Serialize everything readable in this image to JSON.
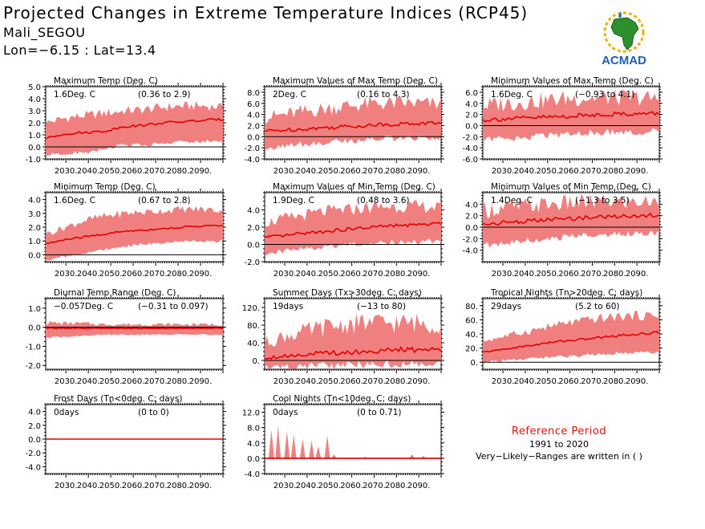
{
  "header": {
    "title": "Projected Changes in Extreme Temperature Indices (RCP45)",
    "location": "Mali_SEGOU",
    "coords": "Lon=−6.15 : Lat=13.4"
  },
  "logo": {
    "text": "ACMAD",
    "icon": "africa-map-logo"
  },
  "reference": {
    "title": "Reference Period",
    "period": "1991 to 2020",
    "note": "Very−Likely−Ranges are written in ( )"
  },
  "colors": {
    "band": "#f08080",
    "line": "#e00000",
    "zero": "#000000"
  },
  "chart_data": [
    {
      "type": "area",
      "title": "Maximum Temp (Deg. C)",
      "summary": "1.6Deg. C",
      "range": "(0.36 to 2.9)",
      "x_start": 2021,
      "x_end": 2100,
      "ylim": [
        -1.0,
        5.0
      ],
      "yticks": [
        "-1.0",
        "0.0",
        "1.0",
        "2.0",
        "3.0",
        "4.0",
        "5.0"
      ],
      "ytick_values": [
        -1,
        0,
        1,
        2,
        3,
        4,
        5
      ],
      "xticks": [
        "2030.",
        "2040.",
        "2050.",
        "2060.",
        "2070.",
        "2080.",
        "2090."
      ],
      "median": [
        0.7,
        1.1,
        1.2,
        1.3,
        1.7,
        1.8,
        2.0,
        2.1,
        2.2,
        2.3
      ],
      "band_low": [
        -0.5,
        -0.4,
        -0.3,
        0.0,
        0.3,
        0.3,
        0.5,
        0.6,
        0.6,
        0.7
      ],
      "band_high": [
        2.0,
        2.4,
        2.6,
        2.8,
        3.0,
        3.1,
        3.3,
        3.4,
        3.4,
        3.3
      ],
      "spikiness": 0.5
    },
    {
      "type": "area",
      "title": "Maximum Values of Max Temp (Deg. C)",
      "summary": "2Deg. C",
      "range": "(0.16 to 4.3)",
      "x_start": 2021,
      "x_end": 2100,
      "ylim": [
        -4.0,
        9.0
      ],
      "yticks": [
        "-4.0",
        "-2.0",
        "0.0",
        "2.0",
        "4.0",
        "6.0",
        "8.0"
      ],
      "ytick_values": [
        -4,
        -2,
        0,
        2,
        4,
        6,
        8
      ],
      "xticks": [
        "2030.",
        "2040.",
        "2050.",
        "2060.",
        "2070.",
        "2080.",
        "2090."
      ],
      "median": [
        1.0,
        1.2,
        1.4,
        1.6,
        1.8,
        2.0,
        2.2,
        2.3,
        2.4,
        2.5
      ],
      "band_low": [
        -1.5,
        -1.2,
        -0.8,
        -0.5,
        -0.2,
        0.0,
        0.2,
        0.3,
        0.3,
        0.4
      ],
      "band_high": [
        3.5,
        4.0,
        4.5,
        5.0,
        5.5,
        5.8,
        6.0,
        6.0,
        6.0,
        5.8
      ],
      "spikiness": 0.9
    },
    {
      "type": "area",
      "title": "Minimum Values of Max Temp (Deg. C)",
      "summary": "1.6Deg. C",
      "range": "(−0.93 to 4.1)",
      "x_start": 2021,
      "x_end": 2100,
      "ylim": [
        -6.0,
        7.0
      ],
      "yticks": [
        "-6.0",
        "-4.0",
        "-2.0",
        "0.0",
        "2.0",
        "4.0",
        "6.0"
      ],
      "ytick_values": [
        -6,
        -4,
        -2,
        0,
        2,
        4,
        6
      ],
      "xticks": [
        "2030.",
        "2040.",
        "2050.",
        "2060.",
        "2070.",
        "2080.",
        "2090."
      ],
      "median": [
        1.0,
        1.2,
        1.3,
        1.5,
        1.6,
        1.8,
        2.0,
        2.1,
        2.1,
        2.2
      ],
      "band_low": [
        -2.0,
        -1.8,
        -1.5,
        -1.2,
        -1.0,
        -0.8,
        -0.6,
        -0.5,
        -0.5,
        -0.4
      ],
      "band_high": [
        3.5,
        4.0,
        4.2,
        4.5,
        4.8,
        5.0,
        5.0,
        5.0,
        5.0,
        4.8
      ],
      "spikiness": 1.0
    },
    {
      "type": "area",
      "title": "Minimum Temp (Deg. C)",
      "summary": "1.6Deg. C",
      "range": "(0.67 to 2.8)",
      "x_start": 2021,
      "x_end": 2100,
      "ylim": [
        -0.5,
        4.5
      ],
      "yticks": [
        "0.0",
        "1.0",
        "2.0",
        "3.0",
        "4.0"
      ],
      "ytick_values": [
        0,
        1,
        2,
        3,
        4
      ],
      "xticks": [
        "2030.",
        "2040.",
        "2050.",
        "2060.",
        "2070.",
        "2080.",
        "2090."
      ],
      "median": [
        0.8,
        1.1,
        1.3,
        1.5,
        1.7,
        1.8,
        1.9,
        2.0,
        2.1,
        2.1
      ],
      "band_low": [
        -0.3,
        0.0,
        0.2,
        0.5,
        0.7,
        0.9,
        1.0,
        1.1,
        1.1,
        1.1
      ],
      "band_high": [
        1.5,
        2.0,
        2.5,
        2.8,
        3.0,
        3.1,
        3.2,
        3.3,
        3.3,
        3.2
      ],
      "spikiness": 0.45
    },
    {
      "type": "area",
      "title": "Maximum Values of Min Temp (Deg. C)",
      "summary": "1.9Deg. C",
      "range": "(0.48 to 3.6)",
      "x_start": 2021,
      "x_end": 2100,
      "ylim": [
        -2.0,
        6.0
      ],
      "yticks": [
        "-2.0",
        "0.0",
        "2.0",
        "4.0"
      ],
      "ytick_values": [
        -2,
        0,
        2,
        4
      ],
      "xticks": [
        "2030.",
        "2040.",
        "2050.",
        "2060.",
        "2070.",
        "2080.",
        "2090."
      ],
      "median": [
        0.8,
        1.0,
        1.3,
        1.5,
        1.7,
        1.9,
        2.1,
        2.2,
        2.3,
        2.4
      ],
      "band_low": [
        -0.8,
        -0.5,
        -0.2,
        0.0,
        0.2,
        0.4,
        0.5,
        0.6,
        0.6,
        0.7
      ],
      "band_high": [
        2.5,
        3.0,
        3.4,
        3.8,
        4.0,
        4.2,
        4.4,
        4.4,
        4.4,
        4.3
      ],
      "spikiness": 0.7
    },
    {
      "type": "area",
      "title": "Minimum Values of Min Temp (Deg. C)",
      "summary": "1.4Deg. C",
      "range": "(−1.3 to 3.5)",
      "x_start": 2021,
      "x_end": 2100,
      "ylim": [
        -6.0,
        6.0
      ],
      "yticks": [
        "-4.0",
        "-2.0",
        "0.0",
        "2.0",
        "4.0"
      ],
      "ytick_values": [
        -4,
        -2,
        0,
        2,
        4
      ],
      "xticks": [
        "2030.",
        "2040.",
        "2050.",
        "2060.",
        "2070.",
        "2080.",
        "2090."
      ],
      "median": [
        0.5,
        0.8,
        1.0,
        1.2,
        1.4,
        1.6,
        1.8,
        1.9,
        2.0,
        2.1
      ],
      "band_low": [
        -2.5,
        -2.2,
        -1.8,
        -1.5,
        -1.2,
        -1.0,
        -0.8,
        -0.6,
        -0.5,
        -0.5
      ],
      "band_high": [
        3.0,
        3.3,
        3.6,
        3.9,
        4.1,
        4.3,
        4.4,
        4.4,
        4.4,
        4.3
      ],
      "spikiness": 1.0
    },
    {
      "type": "area",
      "title": "Diurnal Temp Range (Deg. C)",
      "summary": "−0.057Deg. C",
      "range": "(−0.31 to 0.097)",
      "x_start": 2021,
      "x_end": 2100,
      "ylim": [
        -2.2,
        1.5
      ],
      "yticks": [
        "-2.0",
        "-1.0",
        "0.0",
        "1.0"
      ],
      "ytick_values": [
        -2,
        -1,
        0,
        1
      ],
      "xticks": [
        "2030.",
        "2040.",
        "2050.",
        "2060.",
        "2070.",
        "2080.",
        "2090."
      ],
      "median": [
        -0.05,
        -0.05,
        -0.06,
        -0.06,
        -0.06,
        -0.06,
        -0.06,
        -0.06,
        -0.05,
        -0.05
      ],
      "band_low": [
        -0.5,
        -0.45,
        -0.4,
        -0.35,
        -0.35,
        -0.35,
        -0.35,
        -0.35,
        -0.35,
        -0.35
      ],
      "band_high": [
        0.25,
        0.2,
        0.2,
        0.15,
        0.15,
        0.15,
        0.15,
        0.15,
        0.15,
        0.15
      ],
      "spikiness": 0.6
    },
    {
      "type": "area",
      "title": "Summer Days (Tx>30deg. C; days)",
      "summary": "19days",
      "range": "(−13 to 80)",
      "x_start": 2021,
      "x_end": 2100,
      "ylim": [
        -20,
        140
      ],
      "yticks": [
        "0.",
        "40.",
        "80.",
        "120."
      ],
      "ytick_values": [
        0,
        40,
        80,
        120
      ],
      "xticks": [
        "2030.",
        "2040.",
        "2050.",
        "2060.",
        "2070.",
        "2080.",
        "2090."
      ],
      "median": [
        6,
        10,
        14,
        16,
        18,
        20,
        22,
        24,
        24,
        25
      ],
      "band_low": [
        -12,
        -8,
        -5,
        -3,
        -2,
        0,
        0,
        0,
        0,
        0
      ],
      "band_high": [
        40,
        55,
        65,
        75,
        80,
        85,
        85,
        85,
        85,
        80
      ],
      "spikiness": 1.0
    },
    {
      "type": "area",
      "title": "Tropical Nights (Tn>20deg. C; days)",
      "summary": "29days",
      "range": "(5.2 to 60)",
      "x_start": 2021,
      "x_end": 2100,
      "ylim": [
        -10,
        90
      ],
      "yticks": [
        "0.",
        "20.",
        "40.",
        "60.",
        "80."
      ],
      "ytick_values": [
        0,
        20,
        40,
        60,
        80
      ],
      "xticks": [
        "2030.",
        "2040.",
        "2050.",
        "2060.",
        "2070.",
        "2080.",
        "2090."
      ],
      "median": [
        14,
        18,
        22,
        26,
        30,
        32,
        35,
        38,
        40,
        42
      ],
      "band_low": [
        2,
        4,
        6,
        8,
        10,
        12,
        14,
        16,
        16,
        17
      ],
      "band_high": [
        30,
        36,
        42,
        48,
        54,
        58,
        62,
        65,
        66,
        66
      ],
      "spikiness": 0.5
    },
    {
      "type": "area",
      "title": "Frost Days (Tn<0deg. C; days)",
      "summary": "0days",
      "range": "(0 to 0)",
      "x_start": 2021,
      "x_end": 2100,
      "ylim": [
        -5.0,
        5.0
      ],
      "yticks": [
        "-4.0",
        "-2.0",
        "0.0",
        "2.0",
        "4.0"
      ],
      "ytick_values": [
        -4,
        -2,
        0,
        2,
        4
      ],
      "xticks": [
        "2030.",
        "2040.",
        "2050.",
        "2060.",
        "2070.",
        "2080.",
        "2090."
      ],
      "median": [
        0,
        0,
        0,
        0,
        0,
        0,
        0,
        0,
        0,
        0
      ],
      "band_low": [
        0,
        0,
        0,
        0,
        0,
        0,
        0,
        0,
        0,
        0
      ],
      "band_high": [
        0,
        0,
        0,
        0,
        0,
        0,
        0,
        0,
        0,
        0
      ],
      "spikiness": 0
    },
    {
      "type": "area",
      "title": "Cool Nights (Tn<10deg. C; days)",
      "summary": "0days",
      "range": "(0 to 0.71)",
      "x_start": 2021,
      "x_end": 2100,
      "ylim": [
        -4.0,
        14.0
      ],
      "yticks": [
        "-4.0",
        "0.0",
        "4.0",
        "8.0",
        "12.0"
      ],
      "ytick_values": [
        -4,
        0,
        4,
        8,
        12
      ],
      "xticks": [
        "2030.",
        "2040.",
        "2050.",
        "2060.",
        "2070.",
        "2080.",
        "2090."
      ],
      "median": [
        0,
        0,
        0,
        0,
        0,
        0,
        0,
        0,
        0,
        0
      ],
      "band_low": [
        0,
        0,
        0,
        0,
        0,
        0,
        0,
        0,
        0,
        0
      ],
      "band_high": [
        0,
        0,
        0,
        0,
        0,
        0,
        0,
        0,
        0,
        0
      ],
      "bursts": [
        [
          2024,
          7.5
        ],
        [
          2027,
          8.4
        ],
        [
          2031,
          7.0
        ],
        [
          2034,
          6.2
        ],
        [
          2038,
          5.0
        ],
        [
          2042,
          4.6
        ],
        [
          2045,
          3.2
        ],
        [
          2049,
          6.0
        ],
        [
          2052,
          1.0
        ],
        [
          2066,
          0.4
        ],
        [
          2087,
          1.0
        ],
        [
          2092,
          0.6
        ]
      ],
      "spikiness": 0
    }
  ]
}
